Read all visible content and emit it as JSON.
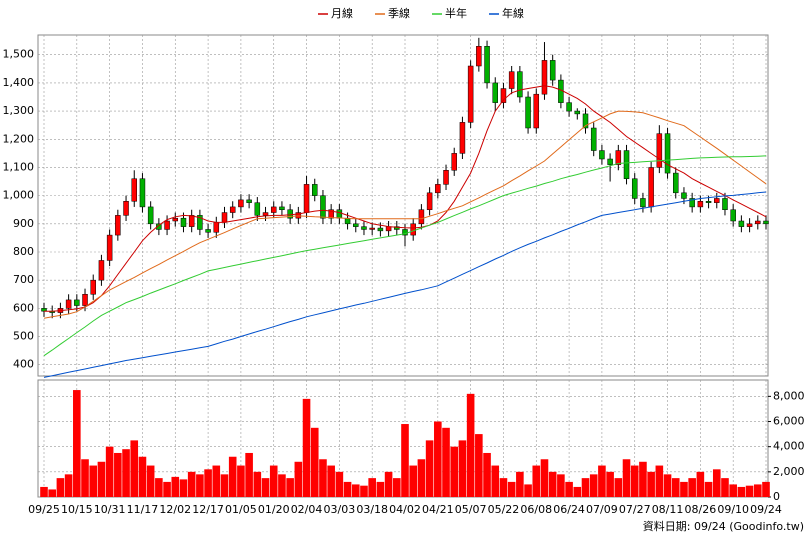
{
  "chart_data": [
    {
      "type": "candlestick",
      "up_color": "#ff0000",
      "down_color": "#00b000",
      "open": [
        600,
        590,
        585,
        600,
        630,
        610,
        650,
        700,
        770,
        860,
        930,
        980,
        1060,
        960,
        900,
        880,
        910,
        920,
        890,
        930,
        880,
        870,
        905,
        940,
        960,
        985,
        975,
        930,
        940,
        960,
        950,
        920,
        940,
        1040,
        1000,
        920,
        950,
        920,
        900,
        890,
        880,
        885,
        875,
        890,
        880,
        860,
        900,
        950,
        1010,
        1040,
        1090,
        1150,
        1260,
        1460,
        1530,
        1400,
        1330,
        1380,
        1440,
        1350,
        1240,
        1360,
        1480,
        1410,
        1330,
        1300,
        1290,
        1240,
        1160,
        1130,
        1110,
        1160,
        1060,
        990,
        960,
        1100,
        1220,
        1080,
        1010,
        990,
        960,
        980,
        975,
        990,
        950,
        910,
        890,
        900,
        910
      ],
      "high": [
        620,
        610,
        620,
        650,
        650,
        670,
        720,
        790,
        880,
        950,
        1000,
        1090,
        1080,
        980,
        920,
        930,
        940,
        940,
        950,
        950,
        900,
        925,
        960,
        980,
        1005,
        1005,
        995,
        960,
        980,
        980,
        970,
        960,
        1070,
        1060,
        1020,
        970,
        970,
        940,
        920,
        910,
        905,
        905,
        910,
        910,
        900,
        920,
        970,
        1030,
        1060,
        1110,
        1170,
        1280,
        1480,
        1560,
        1550,
        1420,
        1400,
        1460,
        1460,
        1370,
        1380,
        1545,
        1500,
        1430,
        1350,
        1310,
        1310,
        1260,
        1180,
        1150,
        1180,
        1180,
        1080,
        1010,
        1120,
        1250,
        1240,
        1100,
        1030,
        1010,
        1000,
        1000,
        1010,
        1010,
        970,
        930,
        920,
        930,
        930
      ],
      "low": [
        570,
        565,
        565,
        580,
        590,
        590,
        630,
        680,
        750,
        840,
        910,
        960,
        940,
        880,
        860,
        860,
        890,
        870,
        870,
        860,
        850,
        850,
        885,
        920,
        940,
        955,
        910,
        910,
        920,
        930,
        900,
        900,
        920,
        980,
        900,
        900,
        900,
        880,
        870,
        860,
        860,
        855,
        855,
        860,
        820,
        840,
        880,
        930,
        990,
        1020,
        1070,
        1130,
        1240,
        1440,
        1380,
        1300,
        1310,
        1360,
        1330,
        1220,
        1220,
        1340,
        1390,
        1310,
        1280,
        1270,
        1220,
        1140,
        1110,
        1050,
        1090,
        1040,
        970,
        940,
        940,
        1080,
        1060,
        990,
        970,
        940,
        940,
        955,
        955,
        930,
        890,
        870,
        870,
        880,
        880
      ],
      "close": [
        590,
        585,
        600,
        630,
        610,
        650,
        700,
        770,
        860,
        930,
        980,
        1060,
        960,
        900,
        880,
        910,
        920,
        890,
        930,
        880,
        870,
        905,
        940,
        960,
        985,
        975,
        930,
        940,
        960,
        950,
        920,
        940,
        1040,
        1000,
        920,
        950,
        920,
        900,
        890,
        880,
        885,
        875,
        890,
        880,
        860,
        900,
        950,
        1010,
        1040,
        1090,
        1150,
        1260,
        1460,
        1530,
        1400,
        1330,
        1380,
        1440,
        1350,
        1240,
        1360,
        1480,
        1410,
        1330,
        1300,
        1290,
        1240,
        1160,
        1130,
        1110,
        1160,
        1060,
        990,
        960,
        1100,
        1220,
        1080,
        1010,
        990,
        960,
        980,
        975,
        990,
        950,
        910,
        890,
        900,
        910,
        900
      ],
      "series": [
        {
          "name": "月線",
          "color": "#cc0000",
          "values": [
            590,
            590,
            592,
            595,
            598,
            605,
            620,
            645,
            680,
            720,
            760,
            800,
            840,
            870,
            895,
            915,
            925,
            930,
            928,
            922,
            910,
            905,
            905,
            910,
            915,
            920,
            925,
            928,
            930,
            930,
            932,
            935,
            940,
            945,
            948,
            945,
            940,
            930,
            920,
            910,
            900,
            895,
            890,
            888,
            886,
            885,
            888,
            895,
            910,
            940,
            980,
            1030,
            1080,
            1150,
            1230,
            1300,
            1340,
            1365,
            1375,
            1380,
            1385,
            1390,
            1385,
            1375,
            1360,
            1345,
            1325,
            1300,
            1280,
            1260,
            1235,
            1210,
            1190,
            1170,
            1150,
            1130,
            1110,
            1095,
            1080,
            1060,
            1045,
            1030,
            1015,
            1000,
            985,
            970,
            955,
            940,
            925
          ]
        },
        {
          "name": "季線",
          "color": "#e06a1b",
          "values": [
            565,
            570,
            575,
            580,
            588,
            605,
            625,
            645,
            665,
            680,
            695,
            710,
            726,
            741,
            756,
            772,
            787,
            802,
            818,
            833,
            845,
            857,
            869,
            882,
            894,
            906,
            918,
            920,
            922,
            924,
            926,
            928,
            927,
            925,
            924,
            922,
            921,
            919,
            918,
            918,
            918,
            918,
            918,
            918,
            918,
            918,
            918,
            927,
            936,
            946,
            955,
            964,
            978,
            992,
            1007,
            1021,
            1035,
            1053,
            1070,
            1088,
            1105,
            1123,
            1148,
            1173,
            1198,
            1223,
            1248,
            1262,
            1276,
            1290,
            1300,
            1299,
            1297,
            1294,
            1285,
            1276,
            1266,
            1257,
            1248,
            1228,
            1208,
            1188,
            1168,
            1147,
            1126,
            1105,
            1084,
            1063,
            1042
          ]
        },
        {
          "name": "半年",
          "color": "#33cc33",
          "values": [
            432,
            452,
            473,
            493,
            514,
            534,
            555,
            575,
            590,
            605,
            620,
            631,
            642,
            654,
            665,
            676,
            687,
            699,
            710,
            721,
            733,
            739,
            745,
            751,
            757,
            763,
            769,
            775,
            781,
            787,
            793,
            799,
            805,
            810,
            815,
            820,
            825,
            830,
            835,
            840,
            845,
            850,
            855,
            860,
            865,
            875,
            885,
            895,
            905,
            917,
            929,
            941,
            953,
            964,
            976,
            988,
            1000,
            1009,
            1017,
            1026,
            1034,
            1043,
            1051,
            1060,
            1068,
            1075,
            1083,
            1091,
            1098,
            1106,
            1114,
            1116,
            1118,
            1120,
            1122,
            1124,
            1126,
            1128,
            1130,
            1132,
            1134,
            1135,
            1136,
            1137,
            1138,
            1138,
            1139,
            1140,
            1141
          ]
        },
        {
          "name": "年線",
          "color": "#0050cc",
          "values": [
            355,
            361,
            367,
            373,
            379,
            385,
            391,
            397,
            403,
            409,
            415,
            420,
            425,
            430,
            435,
            440,
            445,
            450,
            455,
            460,
            465,
            474,
            483,
            491,
            500,
            509,
            518,
            526,
            535,
            544,
            553,
            561,
            570,
            577,
            584,
            591,
            598,
            605,
            612,
            618,
            625,
            632,
            639,
            646,
            653,
            660,
            666,
            673,
            680,
            694,
            707,
            721,
            734,
            748,
            761,
            775,
            788,
            802,
            815,
            827,
            838,
            850,
            861,
            873,
            884,
            896,
            907,
            919,
            930,
            935,
            940,
            945,
            950,
            955,
            960,
            965,
            970,
            975,
            980,
            985,
            990,
            993,
            996,
            999,
            1001,
            1004,
            1007,
            1010,
            1013
          ]
        }
      ],
      "ylim": [
        360,
        1570
      ],
      "yticks": [
        400,
        500,
        600,
        700,
        800,
        900,
        {
          "value": 1000,
          "label": "1,000"
        },
        {
          "value": 1100,
          "label": "1,100"
        },
        {
          "value": 1200,
          "label": "1,200"
        },
        {
          "value": 1300,
          "label": "1,300"
        },
        {
          "value": 1400,
          "label": "1,400"
        },
        {
          "value": 1500,
          "label": "1,500"
        }
      ],
      "grid": true,
      "legend": "top"
    },
    {
      "type": "bar",
      "color": "#ff0000",
      "categories": [
        "09/25",
        null,
        null,
        null,
        "10/15",
        null,
        null,
        null,
        "10/31",
        null,
        null,
        null,
        "11/17",
        null,
        null,
        null,
        "12/02",
        null,
        null,
        null,
        "12/17",
        null,
        null,
        null,
        "01/05",
        null,
        null,
        null,
        "01/20",
        null,
        null,
        null,
        "02/04",
        null,
        null,
        null,
        "03/03",
        null,
        null,
        null,
        "03/18",
        null,
        null,
        null,
        "04/02",
        null,
        null,
        null,
        "04/21",
        null,
        null,
        null,
        "05/07",
        null,
        null,
        null,
        "05/22",
        null,
        null,
        null,
        "06/08",
        null,
        null,
        null,
        "06/24",
        null,
        null,
        null,
        "07/09",
        null,
        null,
        null,
        "07/27",
        null,
        null,
        null,
        "08/11",
        null,
        null,
        null,
        "08/26",
        null,
        null,
        null,
        "09/10",
        null,
        null,
        null,
        "09/24"
      ],
      "values": [
        800,
        600,
        1500,
        1800,
        8500,
        3000,
        2500,
        2800,
        4000,
        3500,
        3800,
        4500,
        3200,
        2500,
        1500,
        1200,
        1600,
        1400,
        2000,
        1800,
        2200,
        2500,
        1800,
        3200,
        2500,
        3500,
        2000,
        1500,
        2500,
        1800,
        1500,
        2800,
        7800,
        5500,
        3000,
        2500,
        2000,
        1200,
        1000,
        900,
        1500,
        1200,
        2000,
        1500,
        5800,
        2500,
        3000,
        4500,
        6000,
        5500,
        4000,
        4500,
        8200,
        5000,
        3500,
        2500,
        1500,
        1200,
        2000,
        1000,
        2500,
        3000,
        2000,
        1800,
        1200,
        800,
        1500,
        1800,
        2500,
        2000,
        1500,
        3000,
        2500,
        2800,
        2000,
        2500,
        1800,
        1500,
        1200,
        1500,
        2000,
        1200,
        2200,
        1500,
        1000,
        800,
        900,
        1000,
        1200
      ],
      "ylim": [
        0,
        9300
      ],
      "yticks": [
        0,
        {
          "value": 2000,
          "label": "2,000"
        },
        {
          "value": 4000,
          "label": "4,000"
        },
        {
          "value": 6000,
          "label": "6,000"
        },
        {
          "value": 8000,
          "label": "8,000"
        }
      ],
      "grid": true
    }
  ],
  "footer": "資料日期: 09/24 (Goodinfo.tw)"
}
